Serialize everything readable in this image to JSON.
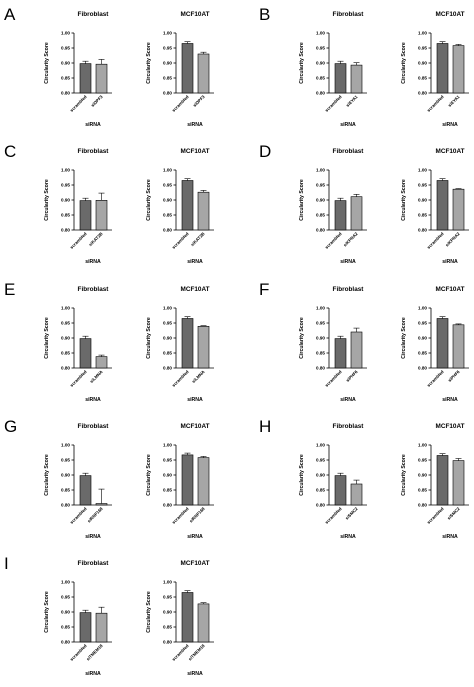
{
  "figure": {
    "panels": [
      {
        "letter": "A",
        "gene": "siDPF3"
      },
      {
        "letter": "B",
        "gene": "siEYA1"
      },
      {
        "letter": "C",
        "gene": "siKAT2B"
      },
      {
        "letter": "D",
        "gene": "siKPNA2"
      },
      {
        "letter": "E",
        "gene": "siLMNA"
      },
      {
        "letter": "F",
        "gene": "siPHF6"
      },
      {
        "letter": "G",
        "gene": "siRNF168"
      },
      {
        "letter": "H",
        "gene": "siSMC2"
      },
      {
        "letter": "I",
        "gene": "siTMEM18"
      }
    ],
    "style": {
      "bar_fill_scrambled": "#6a6a6a",
      "bar_fill_knockdown": "#a6a6a6",
      "axis_color": "#000000"
    }
  },
  "chart_data": [
    {
      "type": "bar",
      "panel": "A",
      "title": "Fibroblast",
      "categories": [
        "scrambled",
        "siDPF3"
      ],
      "values": [
        0.898,
        0.896
      ],
      "errors": [
        0.008,
        0.016
      ],
      "xlabel": "siRNA",
      "ylabel": "Circularity Score",
      "ylim": [
        0.8,
        1.0
      ],
      "yticks": [
        "0.80",
        "0.85",
        "0.90",
        "0.95",
        "1.00"
      ]
    },
    {
      "type": "bar",
      "panel": "A",
      "title": "MCF10AT",
      "categories": [
        "scrambled",
        "siDPF3"
      ],
      "values": [
        0.965,
        0.93
      ],
      "errors": [
        0.006,
        0.006
      ],
      "xlabel": "siRNA",
      "ylabel": "Circularity Score",
      "ylim": [
        0.8,
        1.0
      ],
      "yticks": [
        "0.80",
        "0.85",
        "0.90",
        "0.95",
        "1.00"
      ]
    },
    {
      "type": "bar",
      "panel": "B",
      "title": "Fibroblast",
      "categories": [
        "scrambled",
        "siEYA1"
      ],
      "values": [
        0.898,
        0.893
      ],
      "errors": [
        0.008,
        0.008
      ],
      "xlabel": "siRNA",
      "ylabel": "Circularity Score",
      "ylim": [
        0.8,
        1.0
      ],
      "yticks": [
        "0.80",
        "0.85",
        "0.90",
        "0.95",
        "1.00"
      ]
    },
    {
      "type": "bar",
      "panel": "B",
      "title": "MCF10AT",
      "categories": [
        "scrambled",
        "siEYA1"
      ],
      "values": [
        0.965,
        0.958
      ],
      "errors": [
        0.006,
        0.004
      ],
      "xlabel": "siRNA",
      "ylabel": "Circularity Score",
      "ylim": [
        0.8,
        1.0
      ],
      "yticks": [
        "0.80",
        "0.85",
        "0.90",
        "0.95",
        "1.00"
      ]
    },
    {
      "type": "bar",
      "panel": "C",
      "title": "Fibroblast",
      "categories": [
        "scrambled",
        "siKAT2B"
      ],
      "values": [
        0.898,
        0.899
      ],
      "errors": [
        0.008,
        0.024
      ],
      "xlabel": "siRNA",
      "ylabel": "Circularity Score",
      "ylim": [
        0.8,
        1.0
      ],
      "yticks": [
        "0.80",
        "0.85",
        "0.90",
        "0.95",
        "1.00"
      ]
    },
    {
      "type": "bar",
      "panel": "C",
      "title": "MCF10AT",
      "categories": [
        "scrambled",
        "siKAT2B"
      ],
      "values": [
        0.965,
        0.926
      ],
      "errors": [
        0.006,
        0.006
      ],
      "xlabel": "siRNA",
      "ylabel": "Circularity Score",
      "ylim": [
        0.8,
        1.0
      ],
      "yticks": [
        "0.80",
        "0.85",
        "0.90",
        "0.95",
        "1.00"
      ]
    },
    {
      "type": "bar",
      "panel": "D",
      "title": "Fibroblast",
      "categories": [
        "scrambled",
        "siKPNA2"
      ],
      "values": [
        0.898,
        0.911
      ],
      "errors": [
        0.008,
        0.008
      ],
      "xlabel": "siRNA",
      "ylabel": "Circularity Score",
      "ylim": [
        0.8,
        1.0
      ],
      "yticks": [
        "0.80",
        "0.85",
        "0.90",
        "0.95",
        "1.00"
      ]
    },
    {
      "type": "bar",
      "panel": "D",
      "title": "MCF10AT",
      "categories": [
        "scrambled",
        "siKPNA2"
      ],
      "values": [
        0.965,
        0.936
      ],
      "errors": [
        0.006,
        0.002
      ],
      "xlabel": "siRNA",
      "ylabel": "Circularity Score",
      "ylim": [
        0.8,
        1.0
      ],
      "yticks": [
        "0.80",
        "0.85",
        "0.90",
        "0.95",
        "1.00"
      ]
    },
    {
      "type": "bar",
      "panel": "E",
      "title": "Fibroblast",
      "categories": [
        "scrambled",
        "siLMNA"
      ],
      "values": [
        0.898,
        0.838
      ],
      "errors": [
        0.008,
        0.005
      ],
      "xlabel": "siRNA",
      "ylabel": "Circularity Score",
      "ylim": [
        0.8,
        1.0
      ],
      "yticks": [
        "0.80",
        "0.85",
        "0.90",
        "0.95",
        "1.00"
      ]
    },
    {
      "type": "bar",
      "panel": "E",
      "title": "MCF10AT",
      "categories": [
        "scrambled",
        "siLMNA"
      ],
      "values": [
        0.965,
        0.939
      ],
      "errors": [
        0.006,
        0.002
      ],
      "xlabel": "siRNA",
      "ylabel": "Circularity Score",
      "ylim": [
        0.8,
        1.0
      ],
      "yticks": [
        "0.80",
        "0.85",
        "0.90",
        "0.95",
        "1.00"
      ]
    },
    {
      "type": "bar",
      "panel": "F",
      "title": "Fibroblast",
      "categories": [
        "scrambled",
        "siPHF6"
      ],
      "values": [
        0.898,
        0.92
      ],
      "errors": [
        0.008,
        0.013
      ],
      "xlabel": "siRNA",
      "ylabel": "Circularity Score",
      "ylim": [
        0.8,
        1.0
      ],
      "yticks": [
        "0.80",
        "0.85",
        "0.90",
        "0.95",
        "1.00"
      ]
    },
    {
      "type": "bar",
      "panel": "F",
      "title": "MCF10AT",
      "categories": [
        "scrambled",
        "siPHF6"
      ],
      "values": [
        0.965,
        0.944
      ],
      "errors": [
        0.006,
        0.003
      ],
      "xlabel": "siRNA",
      "ylabel": "Circularity Score",
      "ylim": [
        0.8,
        1.0
      ],
      "yticks": [
        "0.80",
        "0.85",
        "0.90",
        "0.95",
        "1.00"
      ]
    },
    {
      "type": "bar",
      "panel": "G",
      "title": "Fibroblast",
      "categories": [
        "scrambled",
        "siRNF168"
      ],
      "values": [
        0.898,
        0.805
      ],
      "errors": [
        0.008,
        0.048
      ],
      "xlabel": "siRNA",
      "ylabel": "Circularity Score",
      "ylim": [
        0.8,
        1.0
      ],
      "yticks": [
        "0.80",
        "0.85",
        "0.90",
        "0.95",
        "1.00"
      ]
    },
    {
      "type": "bar",
      "panel": "G",
      "title": "MCF10AT",
      "categories": [
        "scrambled",
        "siRNF168"
      ],
      "values": [
        0.967,
        0.958
      ],
      "errors": [
        0.006,
        0.004
      ],
      "xlabel": "siRNA",
      "ylabel": "Circularity Score",
      "ylim": [
        0.8,
        1.0
      ],
      "yticks": [
        "0.80",
        "0.85",
        "0.90",
        "0.95",
        "1.00"
      ]
    },
    {
      "type": "bar",
      "panel": "H",
      "title": "Fibroblast",
      "categories": [
        "scrambled",
        "siSMC2"
      ],
      "values": [
        0.898,
        0.87
      ],
      "errors": [
        0.008,
        0.013
      ],
      "xlabel": "siRNA",
      "ylabel": "Circularity Score",
      "ylim": [
        0.8,
        1.0
      ],
      "yticks": [
        "0.80",
        "0.85",
        "0.90",
        "0.95",
        "1.00"
      ]
    },
    {
      "type": "bar",
      "panel": "H",
      "title": "MCF10AT",
      "categories": [
        "scrambled",
        "siSMC2"
      ],
      "values": [
        0.965,
        0.948
      ],
      "errors": [
        0.006,
        0.007
      ],
      "xlabel": "siRNA",
      "ylabel": "Circularity Score",
      "ylim": [
        0.8,
        1.0
      ],
      "yticks": [
        "0.80",
        "0.85",
        "0.90",
        "0.95",
        "1.00"
      ]
    },
    {
      "type": "bar",
      "panel": "I",
      "title": "Fibroblast",
      "categories": [
        "scrambled",
        "siTMEM18"
      ],
      "values": [
        0.898,
        0.896
      ],
      "errors": [
        0.008,
        0.02
      ],
      "xlabel": "siRNA",
      "ylabel": "Circularity Score",
      "ylim": [
        0.8,
        1.0
      ],
      "yticks": [
        "0.80",
        "0.85",
        "0.90",
        "0.95",
        "1.00"
      ]
    },
    {
      "type": "bar",
      "panel": "I",
      "title": "MCF10AT",
      "categories": [
        "scrambled",
        "siTMEM18"
      ],
      "values": [
        0.965,
        0.927
      ],
      "errors": [
        0.006,
        0.004
      ],
      "xlabel": "siRNA",
      "ylabel": "Circularity Score",
      "ylim": [
        0.8,
        1.0
      ],
      "yticks": [
        "0.80",
        "0.85",
        "0.90",
        "0.95",
        "1.00"
      ]
    }
  ]
}
